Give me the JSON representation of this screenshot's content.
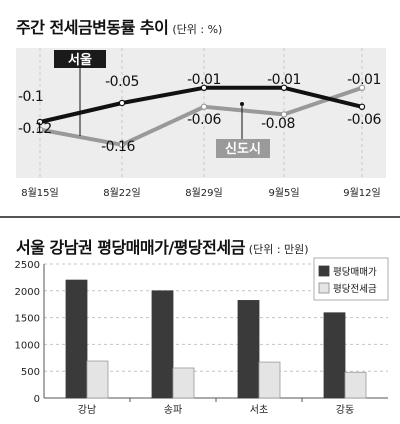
{
  "chart_data": [
    {
      "type": "line",
      "title": "주간 전세금변동률 추이",
      "unit_note": "(단위 : %)",
      "categories": [
        "8월15일",
        "8월22일",
        "8월29일",
        "9월5일",
        "9월12일"
      ],
      "ylim": [
        -0.2,
        0.0
      ],
      "series": [
        {
          "name": "서울",
          "values": [
            -0.1,
            -0.05,
            -0.01,
            -0.01,
            -0.06
          ],
          "value_labels": [
            "-0.1",
            "-0.05",
            "-0.01",
            "-0.01",
            "-0.06"
          ],
          "color": "#111111"
        },
        {
          "name": "신도시",
          "values": [
            -0.12,
            -0.16,
            -0.06,
            -0.08,
            -0.01
          ],
          "value_labels": [
            "-0.12",
            "-0.16",
            "-0.06",
            "-0.08",
            "-0.01"
          ],
          "color": "#999999"
        }
      ]
    },
    {
      "type": "bar",
      "title": "서울 강남권 평당매매가/평당전세금",
      "unit_note": "(단위 : 만원)",
      "categories": [
        "강남",
        "송파",
        "서초",
        "강동"
      ],
      "ylim": [
        0,
        2500
      ],
      "yticks": [
        0,
        500,
        1000,
        1500,
        2000,
        2500
      ],
      "legend_position": "top-right",
      "series": [
        {
          "name": "평당매매가",
          "values": [
            2200,
            2000,
            1820,
            1590
          ],
          "color": "#3a3a3a"
        },
        {
          "name": "평당전세금",
          "values": [
            690,
            560,
            670,
            480
          ],
          "color": "#e4e4e4"
        }
      ]
    }
  ]
}
